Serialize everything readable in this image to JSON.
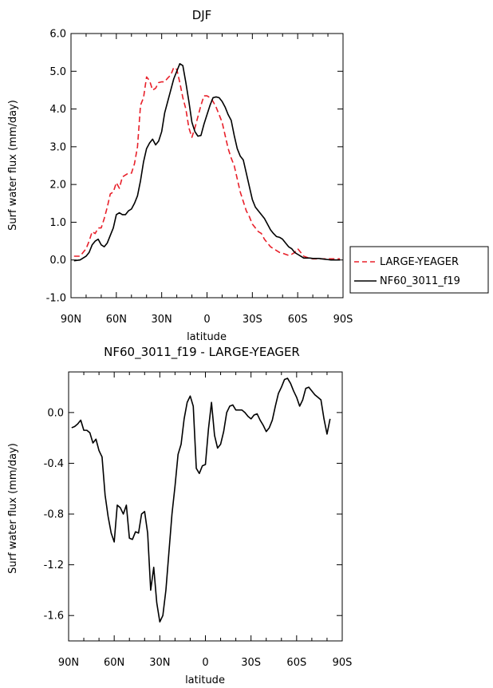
{
  "chart_data": [
    {
      "type": "line",
      "title": "DJF",
      "xlabel": "latitude",
      "ylabel": "Surf water flux (mm/day)",
      "xlim": [
        -90,
        90
      ],
      "ylim": [
        -1.0,
        6.0
      ],
      "x_ticks": [
        -90,
        -60,
        -30,
        0,
        30,
        60,
        90
      ],
      "x_tick_labels": [
        "90N",
        "60N",
        "30N",
        "0",
        "30S",
        "60S",
        "90S"
      ],
      "y_ticks": [
        -1,
        0,
        1,
        2,
        3,
        4,
        5,
        6
      ],
      "y_tick_labels": [
        "-1.0",
        "0.0",
        "1.0",
        "2.0",
        "3.0",
        "4.0",
        "5.0",
        "6.0"
      ],
      "legend_position": "right",
      "series": [
        {
          "name": "LARGE-YEAGER",
          "color": "#e8202a",
          "dash": "dashed",
          "x": [
            -88,
            -84,
            -82,
            -80,
            -78,
            -76,
            -74,
            -72,
            -70,
            -68,
            -66,
            -64,
            -62,
            -60,
            -58,
            -56,
            -54,
            -52,
            -50,
            -48,
            -46,
            -44,
            -42,
            -40,
            -38,
            -36,
            -34,
            -32,
            -30,
            -28,
            -26,
            -24,
            -22,
            -20,
            -18,
            -16,
            -14,
            -12,
            -10,
            -8,
            -6,
            -4,
            -2,
            0,
            2,
            4,
            6,
            8,
            10,
            12,
            14,
            16,
            18,
            20,
            22,
            24,
            26,
            28,
            30,
            32,
            34,
            36,
            38,
            40,
            42,
            44,
            46,
            48,
            50,
            52,
            54,
            56,
            58,
            60,
            62,
            64,
            66,
            68,
            70,
            72,
            74,
            76,
            78,
            80,
            82,
            84,
            86,
            88
          ],
          "values": [
            0.1,
            0.1,
            0.2,
            0.3,
            0.5,
            0.75,
            0.7,
            0.85,
            0.85,
            1.1,
            1.4,
            1.75,
            1.8,
            2.05,
            1.9,
            2.2,
            2.25,
            2.3,
            2.3,
            2.55,
            3.0,
            4.1,
            4.3,
            4.85,
            4.75,
            4.5,
            4.55,
            4.7,
            4.72,
            4.72,
            4.82,
            4.9,
            5.1,
            5.05,
            4.7,
            4.3,
            4.0,
            3.5,
            3.25,
            3.5,
            3.8,
            4.1,
            4.35,
            4.35,
            4.3,
            4.2,
            4.05,
            3.85,
            3.65,
            3.3,
            2.95,
            2.7,
            2.5,
            2.15,
            1.8,
            1.55,
            1.3,
            1.15,
            0.95,
            0.85,
            0.75,
            0.7,
            0.55,
            0.45,
            0.35,
            0.3,
            0.25,
            0.2,
            0.18,
            0.15,
            0.12,
            0.15,
            0.2,
            0.3,
            0.2,
            0.1,
            0.07,
            0.05,
            0.03,
            0.03,
            0.03,
            0.03,
            0.03,
            0.03,
            0.03,
            0.03,
            0.03,
            0.03
          ]
        },
        {
          "name": "NF60_3011_f19",
          "color": "#000000",
          "dash": "solid",
          "x": [
            -88,
            -84,
            -82,
            -80,
            -78,
            -76,
            -74,
            -72,
            -70,
            -68,
            -66,
            -64,
            -62,
            -60,
            -58,
            -56,
            -54,
            -52,
            -50,
            -48,
            -46,
            -44,
            -42,
            -40,
            -38,
            -36,
            -34,
            -32,
            -30,
            -28,
            -26,
            -24,
            -22,
            -20,
            -18,
            -16,
            -14,
            -12,
            -10,
            -8,
            -6,
            -4,
            -2,
            0,
            2,
            4,
            6,
            8,
            10,
            12,
            14,
            16,
            18,
            20,
            22,
            24,
            26,
            28,
            30,
            32,
            34,
            36,
            38,
            40,
            42,
            44,
            46,
            48,
            50,
            52,
            54,
            56,
            58,
            60,
            62,
            64,
            66,
            68,
            70,
            72,
            74,
            76,
            78,
            80,
            82,
            84,
            86,
            88
          ],
          "values": [
            -0.02,
            0.0,
            0.05,
            0.1,
            0.2,
            0.4,
            0.5,
            0.55,
            0.4,
            0.35,
            0.45,
            0.65,
            0.85,
            1.2,
            1.25,
            1.2,
            1.2,
            1.3,
            1.35,
            1.5,
            1.7,
            2.1,
            2.6,
            2.95,
            3.1,
            3.2,
            3.05,
            3.15,
            3.4,
            3.9,
            4.2,
            4.5,
            4.8,
            5.0,
            5.2,
            5.15,
            4.7,
            4.2,
            3.65,
            3.4,
            3.28,
            3.3,
            3.6,
            3.85,
            4.1,
            4.3,
            4.32,
            4.3,
            4.2,
            4.05,
            3.85,
            3.7,
            3.3,
            2.95,
            2.75,
            2.65,
            2.3,
            1.95,
            1.6,
            1.4,
            1.3,
            1.2,
            1.1,
            0.95,
            0.8,
            0.7,
            0.62,
            0.6,
            0.55,
            0.45,
            0.35,
            0.3,
            0.2,
            0.15,
            0.1,
            0.05,
            0.05,
            0.05,
            0.04,
            0.04,
            0.04,
            0.03,
            0.02,
            0.01,
            0.0,
            0.0,
            0.0,
            0.0
          ]
        }
      ]
    },
    {
      "type": "line",
      "title": "NF60_3011_f19 - LARGE-YEAGER",
      "xlabel": "latitude",
      "ylabel": "Surf water flux (mm/day)",
      "xlim": [
        -90,
        90
      ],
      "ylim": [
        -1.8,
        0.32
      ],
      "x_ticks": [
        -90,
        -60,
        -30,
        0,
        30,
        60,
        90
      ],
      "x_tick_labels": [
        "90N",
        "60N",
        "30N",
        "0",
        "30S",
        "60S",
        "90S"
      ],
      "y_ticks": [
        -1.6,
        -1.2,
        -0.8,
        -0.4,
        0.0
      ],
      "y_tick_labels": [
        "-1.6",
        "-1.2",
        "-0.8",
        "-0.4",
        "0.0"
      ],
      "series": [
        {
          "name": "NF60_3011_f19 - LARGE-YEAGER",
          "color": "#000000",
          "dash": "solid",
          "x": [
            -88,
            -86,
            -84,
            -82,
            -80,
            -78,
            -76,
            -74,
            -72,
            -70,
            -68,
            -66,
            -64,
            -62,
            -60,
            -58,
            -56,
            -54,
            -52,
            -50,
            -48,
            -46,
            -44,
            -42,
            -40,
            -38,
            -36,
            -34,
            -32,
            -30,
            -28,
            -26,
            -24,
            -22,
            -20,
            -18,
            -16,
            -14,
            -12,
            -10,
            -8,
            -6,
            -4,
            -2,
            0,
            2,
            4,
            6,
            8,
            10,
            12,
            14,
            16,
            18,
            20,
            22,
            24,
            26,
            28,
            30,
            32,
            34,
            36,
            38,
            40,
            42,
            44,
            46,
            48,
            50,
            52,
            54,
            56,
            58,
            60,
            62,
            64,
            66,
            68,
            70,
            72,
            74,
            76,
            78,
            80,
            82
          ],
          "values": [
            -0.12,
            -0.11,
            -0.09,
            -0.06,
            -0.14,
            -0.14,
            -0.16,
            -0.24,
            -0.21,
            -0.3,
            -0.35,
            -0.65,
            -0.82,
            -0.95,
            -1.02,
            -0.73,
            -0.75,
            -0.8,
            -0.73,
            -0.99,
            -1.0,
            -0.94,
            -0.95,
            -0.8,
            -0.78,
            -0.95,
            -1.4,
            -1.22,
            -1.5,
            -1.65,
            -1.6,
            -1.4,
            -1.1,
            -0.8,
            -0.58,
            -0.33,
            -0.25,
            -0.05,
            0.08,
            0.13,
            0.05,
            -0.44,
            -0.48,
            -0.42,
            -0.41,
            -0.13,
            0.08,
            -0.18,
            -0.28,
            -0.25,
            -0.15,
            0.0,
            0.05,
            0.06,
            0.02,
            0.02,
            0.02,
            0.0,
            -0.03,
            -0.05,
            -0.02,
            -0.01,
            -0.06,
            -0.1,
            -0.15,
            -0.12,
            -0.06,
            0.05,
            0.15,
            0.2,
            0.26,
            0.27,
            0.23,
            0.17,
            0.12,
            0.05,
            0.1,
            0.19,
            0.2,
            0.17,
            0.14,
            0.12,
            0.1,
            -0.05,
            -0.17,
            -0.05
          ]
        }
      ]
    }
  ]
}
